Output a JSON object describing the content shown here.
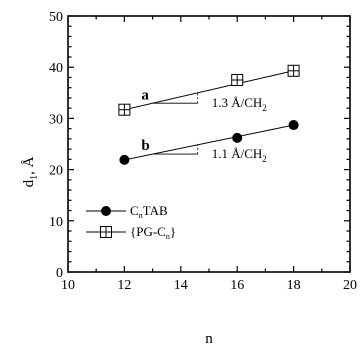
{
  "chart_data": {
    "type": "scatter",
    "xlabel": "n",
    "ylabel": "d",
    "ylabel_sub": "1",
    "ylabel_unit": ", Å",
    "xlim": [
      10,
      20
    ],
    "ylim": [
      0,
      50
    ],
    "x_ticks": [
      10,
      12,
      14,
      16,
      18,
      20
    ],
    "y_ticks": [
      0,
      10,
      20,
      30,
      40,
      50
    ],
    "x_tick_labels": [
      "10",
      "12",
      "14",
      "16",
      "18",
      "20"
    ],
    "y_tick_labels": [
      "0",
      "10",
      "20",
      "30",
      "40",
      "50"
    ],
    "grid": false,
    "legend_position": "bottom-left",
    "series": [
      {
        "name": "CnTAB",
        "label_main": "C",
        "label_sub": "n",
        "label_tail": "TAB",
        "marker": "filled-circle",
        "tag": "b",
        "x": [
          12,
          16,
          18
        ],
        "y": [
          21.9,
          26.2,
          28.7
        ],
        "fit": {
          "x": [
            12,
            18
          ],
          "y": [
            21.9,
            28.7
          ]
        },
        "slope_label": "1.1 Å/CH",
        "slope_sub": "2"
      },
      {
        "name": "{PG-Cn}",
        "label_main": "{PG-C",
        "label_sub": "n",
        "label_tail": "}",
        "marker": "boxed-plus",
        "tag": "a",
        "x": [
          12,
          16,
          18
        ],
        "y": [
          31.7,
          37.5,
          39.3
        ],
        "fit": {
          "x": [
            12,
            18
          ],
          "y": [
            31.7,
            39.3
          ]
        },
        "slope_label": "1.3 Å/CH",
        "slope_sub": "2"
      }
    ]
  }
}
